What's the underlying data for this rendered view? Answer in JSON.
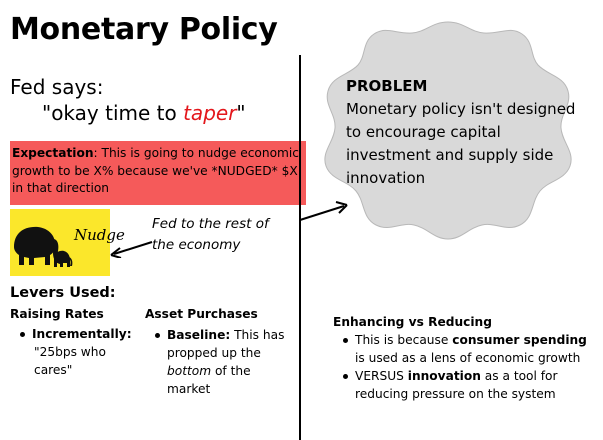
{
  "title": "Monetary Policy",
  "fed_says": "Fed says:",
  "quote": {
    "prefix": "\"okay time to ",
    "highlight": "taper",
    "suffix": "\""
  },
  "expectation": {
    "label": "Expectation",
    "text": ": This is going to nudge economic growth to be X% because we've *NUDGED* $X in that direction"
  },
  "nudge_image": {
    "word": "Nudge",
    "icon": "elephant-icon",
    "bg": "#fbe72b"
  },
  "fed_rest_label": "Fed to the rest of the economy",
  "levers": {
    "title": "Levers Used:",
    "raising_rates": {
      "title": "Raising Rates",
      "bullet_bold": "Incrementally:",
      "sub": "\"25bps who cares\""
    },
    "asset_purchases": {
      "title": "Asset Purchases",
      "bullet_bold": "Baseline:",
      "text1": " This has propped up the ",
      "italic": "bottom",
      "text2": " of the market"
    }
  },
  "problem": {
    "title": "PROBLEM",
    "text": "Monetary policy isn't designed to encourage capital investment and supply side innovation"
  },
  "enhancing": {
    "title": "Enhancing vs Reducing",
    "item1": {
      "pre": "This is because ",
      "bold": "consumer spending",
      "post": "  is used as a lens of economic growth"
    },
    "item2": {
      "pre": "VERSUS ",
      "bold": "innovation",
      "post": " as a tool for reducing pressure on the system"
    }
  },
  "colors": {
    "expectation_bg": "#f55a5a",
    "taper": "#e3161b",
    "cloud": "#d9d9d9"
  }
}
